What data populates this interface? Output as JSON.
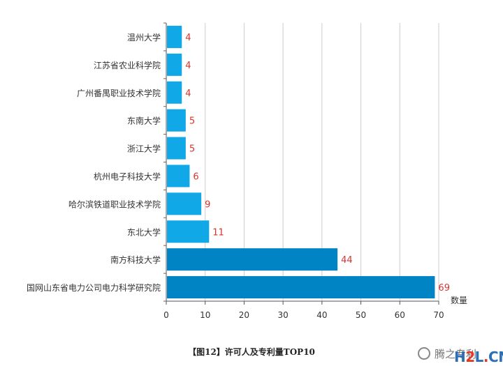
{
  "chart_data": {
    "type": "bar",
    "orientation": "horizontal",
    "categories": [
      "温州大学",
      "江苏省农业科学院",
      "广州番禺职业技术学院",
      "东南大学",
      "浙江大学",
      "杭州电子科技大学",
      "哈尔滨铁道职业技术学院",
      "东北大学",
      "南方科技大学",
      "国网山东省电力公司电力科学研究院"
    ],
    "values": [
      4,
      4,
      4,
      5,
      5,
      6,
      9,
      11,
      44,
      69
    ],
    "xlabel": "数量",
    "xlim": [
      0,
      70
    ],
    "xticks": [
      0,
      10,
      20,
      30,
      40,
      50,
      60,
      70
    ],
    "grid": true,
    "colors": {
      "bar_light": "#10a8e6",
      "bar_dark": "#0084c4",
      "label": "#d9342b",
      "grid": "#cccccc"
    }
  },
  "caption": "【图12】许可人及专利量TOP10",
  "watermark": {
    "text": "腾之专利",
    "logo_h": "H",
    "logo_2": "2",
    "logo_l": "L",
    "logo_dot": ".",
    "logo_cn": "CN"
  }
}
